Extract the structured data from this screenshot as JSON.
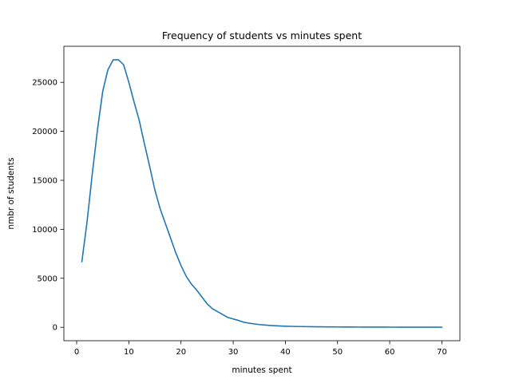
{
  "chart_data": {
    "type": "line",
    "title": "Frequency of students vs minutes spent",
    "xlabel": "minutes spent",
    "ylabel": "nmbr of students",
    "xlim": [
      -2.45,
      73.45
    ],
    "ylim": [
      -1370,
      28680
    ],
    "xticks": [
      0,
      10,
      20,
      30,
      40,
      50,
      60,
      70
    ],
    "yticks": [
      0,
      5000,
      10000,
      15000,
      20000,
      25000
    ],
    "grid": false,
    "color": "#1f77b4",
    "series": [
      {
        "x": [
          1,
          2,
          3,
          4,
          5,
          6,
          7,
          8,
          9,
          10,
          11,
          12,
          13,
          14,
          15,
          16,
          17,
          18,
          19,
          20,
          21,
          22,
          23,
          24,
          25,
          26,
          27,
          28,
          29,
          30,
          31,
          32,
          33,
          34,
          35,
          36,
          37,
          38,
          39,
          40,
          41,
          42,
          43,
          44,
          45,
          46,
          47,
          48,
          49,
          50,
          51,
          52,
          53,
          54,
          55,
          56,
          57,
          58,
          59,
          60,
          61,
          62,
          63,
          64,
          65,
          66,
          67,
          68,
          69,
          70
        ],
        "values": [
          6700,
          10800,
          15700,
          20200,
          24100,
          26300,
          27300,
          27300,
          26800,
          25000,
          23000,
          21100,
          18700,
          16400,
          14000,
          12100,
          10600,
          9100,
          7600,
          6300,
          5200,
          4400,
          3800,
          3100,
          2400,
          1900,
          1600,
          1300,
          1000,
          850,
          700,
          520,
          420,
          350,
          280,
          230,
          190,
          160,
          130,
          110,
          95,
          85,
          75,
          65,
          58,
          52,
          47,
          42,
          38,
          34,
          31,
          28,
          26,
          24,
          22,
          20,
          18,
          17,
          16,
          15,
          14,
          13,
          12,
          11,
          10,
          9,
          8,
          7,
          6,
          5
        ]
      }
    ]
  }
}
